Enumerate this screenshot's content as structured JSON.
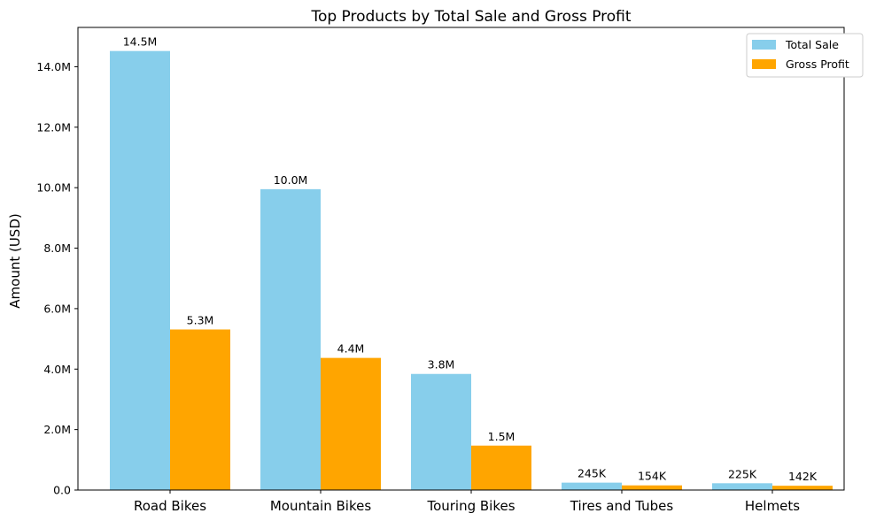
{
  "chart_data": {
    "type": "bar",
    "title": "Top Products by Total Sale and Gross Profit",
    "xlabel": "",
    "ylabel": "Amount (USD)",
    "ylim": [
      0,
      15300000
    ],
    "yticks": [
      0,
      2000000,
      4000000,
      6000000,
      8000000,
      10000000,
      12000000,
      14000000
    ],
    "ytick_labels": [
      "0.0",
      "2.0M",
      "4.0M",
      "6.0M",
      "8.0M",
      "10.0M",
      "12.0M",
      "14.0M"
    ],
    "categories": [
      "Road Bikes",
      "Mountain Bikes",
      "Touring Bikes",
      "Tires and Tubes",
      "Helmets"
    ],
    "series": [
      {
        "name": "Total Sale",
        "color": "#87CEEB",
        "values": [
          14520000,
          9950000,
          3840000,
          245000,
          225000
        ],
        "labels": [
          "14.5M",
          "10.0M",
          "3.8M",
          "245K",
          "225K"
        ]
      },
      {
        "name": "Gross Profit",
        "color": "#FFA500",
        "values": [
          5310000,
          4370000,
          1470000,
          154000,
          142000
        ],
        "labels": [
          "5.3M",
          "4.4M",
          "1.5M",
          "154K",
          "142K"
        ]
      }
    ],
    "legend_position": "top-right",
    "grid": false
  }
}
